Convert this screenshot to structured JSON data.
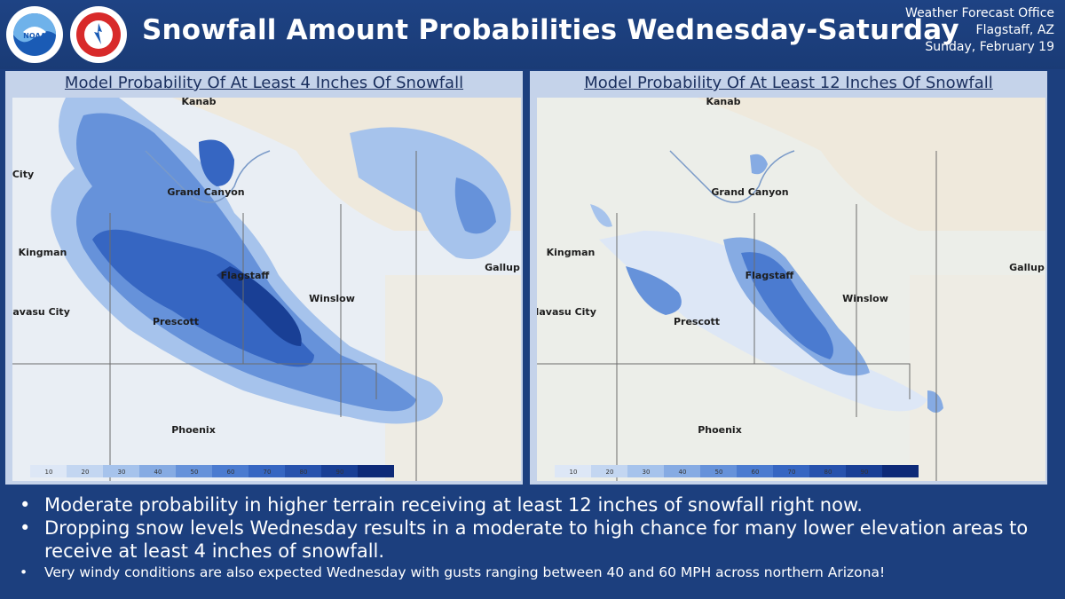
{
  "header": {
    "title": "Snowfall Amount Probabilities Wednesday-Saturday",
    "office": {
      "line1": "Weather Forecast Office",
      "line2": "Flagstaff, AZ",
      "line3": "Sunday, February 19"
    },
    "logos": [
      "noaa-logo",
      "nws-logo"
    ]
  },
  "panels": [
    {
      "title": "Model Probability Of At Least 4 Inches Of Snowfall",
      "places": [
        "Kanab",
        "Grand Canyon",
        "Kingman",
        "Flagstaff",
        "Winslow",
        "Prescott",
        "Phoenix",
        "Gallup",
        "Havasu City",
        "City"
      ],
      "legend": [
        "10",
        "20",
        "30",
        "40",
        "50",
        "60",
        "70",
        "80",
        "90"
      ]
    },
    {
      "title": "Model Probability Of At Least 12 Inches Of Snowfall",
      "places": [
        "Kanab",
        "Grand Canyon",
        "Kingman",
        "Flagstaff",
        "Winslow",
        "Prescott",
        "Phoenix",
        "Gallup",
        "Havasu City"
      ],
      "legend": [
        "10",
        "20",
        "30",
        "40",
        "50",
        "60",
        "70",
        "80",
        "90"
      ]
    }
  ],
  "legend_colors": [
    "#dde7f6",
    "#c3d6f1",
    "#a6c3ec",
    "#86abe3",
    "#6692da",
    "#4b7bd0",
    "#3666c2",
    "#2752ad",
    "#193f95",
    "#0d2a78"
  ],
  "bullets": [
    "Moderate probability in higher terrain receiving at least 12 inches of snowfall right now.",
    "Dropping snow levels Wednesday results in a moderate to high chance for many lower elevation areas to receive at least 4 inches of snowfall.",
    "Very windy conditions are also expected Wednesday with gusts ranging between 40 and 60 MPH across northern Arizona!"
  ]
}
